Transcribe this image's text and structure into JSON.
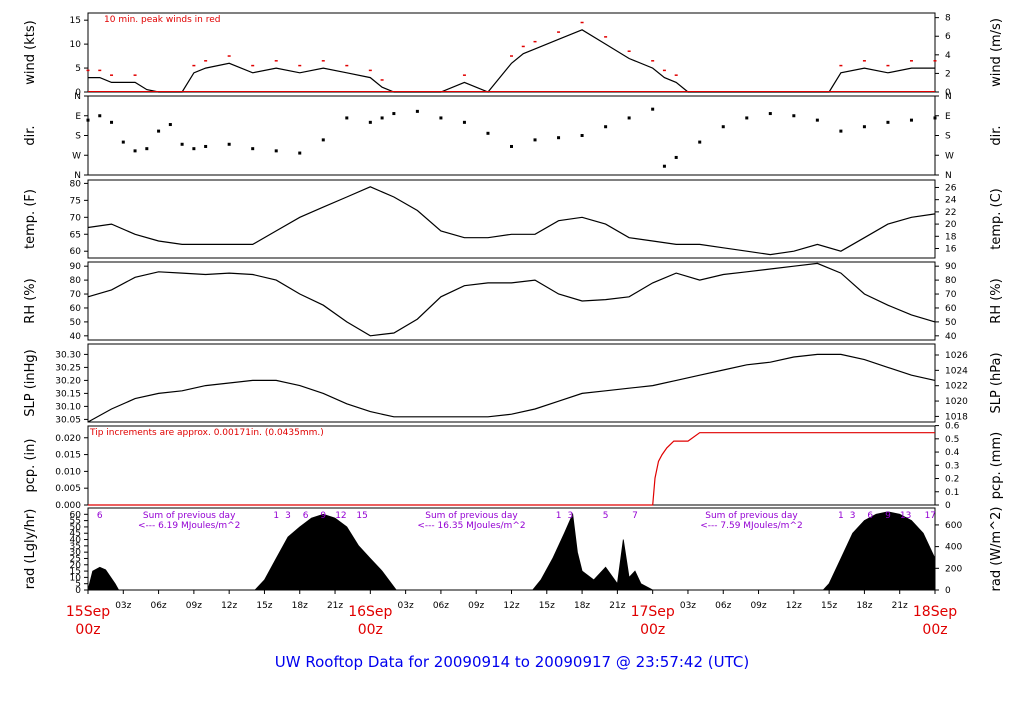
{
  "footer": {
    "title": "UW Rooftop Data for 20090914  to  20090917 @ 23:57:42  (UTC)"
  },
  "colors": {
    "trace": "#000000",
    "peak": "#e00000",
    "annotation": "#9400d3",
    "footer": "#0000ee",
    "date": "#e00000"
  },
  "time_axis": {
    "hour_ticks": [
      "03z",
      "06z",
      "09z",
      "12z",
      "15z",
      "18z",
      "21z"
    ],
    "date_labels": [
      {
        "date": "15Sep",
        "hour": "00z",
        "t": 0
      },
      {
        "date": "16Sep",
        "hour": "00z",
        "t": 24
      },
      {
        "date": "17Sep",
        "hour": "00z",
        "t": 48
      },
      {
        "date": "18Sep",
        "hour": "00z",
        "t": 72
      }
    ]
  },
  "chart_data": [
    {
      "type": "line",
      "id": "wind",
      "ylabel": "wind (kts)",
      "ylabel_right": "wind (m/s)",
      "ylim": [
        0,
        16.5
      ],
      "yticks": [
        0,
        5,
        10,
        15
      ],
      "right_ylim": [
        0,
        8.5
      ],
      "right_yticks": [
        0,
        2,
        4,
        6,
        8
      ],
      "annotation": "10 min. peak winds in red",
      "series": [
        {
          "x": [
            0,
            1,
            2,
            4,
            5,
            6,
            8,
            9,
            10,
            12,
            14,
            16,
            18,
            20,
            22,
            24,
            25,
            26,
            27,
            28,
            30,
            32,
            34,
            36,
            37,
            38,
            40,
            42,
            44,
            46,
            48,
            49,
            50,
            51,
            52,
            54,
            56,
            58,
            60,
            62,
            63,
            64,
            66,
            68,
            70,
            72
          ],
          "values": [
            3,
            3,
            2,
            2,
            0.5,
            0,
            0,
            4,
            5,
            6,
            4,
            5,
            4,
            5,
            4,
            3,
            1,
            0,
            0,
            0,
            0,
            2,
            0,
            6,
            8,
            9,
            11,
            13,
            10,
            7,
            5,
            3,
            2,
            0,
            0,
            0,
            0,
            0,
            0,
            0,
            0,
            4,
            5,
            4,
            5,
            5
          ]
        }
      ]
    },
    {
      "type": "scatter",
      "id": "dir",
      "ylabel": "dir.",
      "ylabel_right": "dir.",
      "yticks": [
        "N",
        "W",
        "S",
        "E",
        "N"
      ],
      "ylim": [
        0,
        360
      ],
      "series": [
        {
          "x": [
            0,
            1,
            2,
            3,
            4,
            5,
            6,
            7,
            8,
            9,
            10,
            12,
            14,
            16,
            18,
            20,
            22,
            24,
            25,
            26,
            28,
            30,
            32,
            34,
            36,
            38,
            40,
            42,
            44,
            46,
            48,
            49,
            50,
            52,
            54,
            56,
            58,
            60,
            62,
            64,
            66,
            68,
            70,
            72
          ],
          "values": [
            250,
            270,
            240,
            150,
            110,
            120,
            200,
            230,
            140,
            120,
            130,
            140,
            120,
            110,
            100,
            160,
            260,
            240,
            260,
            280,
            290,
            260,
            240,
            190,
            130,
            160,
            170,
            180,
            220,
            260,
            300,
            40,
            80,
            150,
            220,
            260,
            280,
            270,
            250,
            200,
            220,
            240,
            250,
            260
          ]
        }
      ]
    },
    {
      "type": "line",
      "id": "temp",
      "ylabel": "temp. (F)",
      "ylabel_right": "temp. (C)",
      "ylim": [
        58,
        81
      ],
      "yticks": [
        60,
        65,
        70,
        75,
        80
      ],
      "right_yticks": [
        16,
        18,
        20,
        22,
        24,
        26
      ],
      "series": [
        {
          "x": [
            0,
            2,
            4,
            6,
            8,
            10,
            12,
            14,
            16,
            18,
            20,
            22,
            24,
            26,
            28,
            30,
            32,
            34,
            36,
            38,
            40,
            42,
            44,
            46,
            48,
            50,
            52,
            54,
            56,
            58,
            60,
            62,
            64,
            66,
            68,
            70,
            72
          ],
          "values": [
            67,
            68,
            65,
            63,
            62,
            62,
            62,
            62,
            66,
            70,
            73,
            76,
            79,
            76,
            72,
            66,
            64,
            64,
            65,
            65,
            69,
            70,
            68,
            64,
            63,
            62,
            62,
            61,
            60,
            59,
            60,
            62,
            60,
            64,
            68,
            70,
            71
          ]
        }
      ]
    },
    {
      "type": "line",
      "id": "rh",
      "ylabel": "RH (%)",
      "ylabel_right": "RH (%)",
      "ylim": [
        37,
        93
      ],
      "yticks": [
        40,
        50,
        60,
        70,
        80,
        90
      ],
      "right_yticks": [
        40,
        50,
        60,
        70,
        80,
        90
      ],
      "series": [
        {
          "x": [
            0,
            2,
            4,
            6,
            8,
            10,
            12,
            14,
            16,
            18,
            20,
            22,
            24,
            26,
            28,
            30,
            32,
            34,
            36,
            38,
            40,
            42,
            44,
            46,
            48,
            50,
            52,
            54,
            56,
            58,
            60,
            62,
            64,
            66,
            68,
            70,
            72
          ],
          "values": [
            68,
            73,
            82,
            86,
            85,
            84,
            85,
            84,
            80,
            70,
            62,
            50,
            40,
            42,
            52,
            68,
            76,
            78,
            78,
            80,
            70,
            65,
            66,
            68,
            78,
            85,
            80,
            84,
            86,
            88,
            90,
            92,
            85,
            70,
            62,
            55,
            50
          ]
        }
      ]
    },
    {
      "type": "line",
      "id": "slp",
      "ylabel": "SLP (inHg)",
      "ylabel_right": "SLP (hPa)",
      "ylim": [
        30.04,
        30.34
      ],
      "yticks": [
        30.05,
        30.1,
        30.15,
        30.2,
        30.25,
        30.3
      ],
      "right_yticks": [
        1018,
        1020,
        1022,
        1024,
        1026
      ],
      "series": [
        {
          "x": [
            0,
            2,
            4,
            6,
            8,
            10,
            12,
            14,
            16,
            18,
            20,
            22,
            24,
            26,
            28,
            30,
            32,
            34,
            36,
            38,
            40,
            42,
            44,
            46,
            48,
            50,
            52,
            54,
            56,
            58,
            60,
            62,
            64,
            66,
            68,
            70,
            72
          ],
          "values": [
            30.04,
            30.09,
            30.13,
            30.15,
            30.16,
            30.18,
            30.19,
            30.2,
            30.2,
            30.18,
            30.15,
            30.11,
            30.08,
            30.06,
            30.06,
            30.06,
            30.06,
            30.06,
            30.07,
            30.09,
            30.12,
            30.15,
            30.16,
            30.17,
            30.18,
            30.2,
            30.22,
            30.24,
            30.26,
            30.27,
            30.29,
            30.3,
            30.3,
            30.28,
            30.25,
            30.22,
            30.2
          ]
        }
      ]
    },
    {
      "type": "line",
      "id": "pcp",
      "ylabel": "pcp. (in)",
      "ylabel_right": "pcp. (mm)",
      "ylim": [
        0,
        0.0235
      ],
      "yticks": [
        0.0,
        0.005,
        0.01,
        0.015,
        0.02
      ],
      "right_yticks": [
        0,
        0.1,
        0.2,
        0.3,
        0.4,
        0.5,
        0.6
      ],
      "annotation": "Tip increments are approx. 0.00171in. (0.0435mm.)",
      "series": [
        {
          "x": [
            0,
            48,
            48.2,
            48.5,
            48.8,
            49.2,
            49.8,
            50.5,
            51,
            52,
            54,
            60,
            72
          ],
          "values": [
            0,
            0,
            0.008,
            0.013,
            0.015,
            0.017,
            0.019,
            0.019,
            0.019,
            0.0215,
            0.0215,
            0.0215,
            0.0215
          ]
        }
      ]
    },
    {
      "type": "area",
      "id": "rad",
      "ylabel": "rad (Lgly/hr)",
      "ylabel_right": "rad (W/m^2)",
      "ylim": [
        0,
        65
      ],
      "yticks": [
        0,
        5,
        10,
        15,
        20,
        25,
        30,
        35,
        40,
        45,
        50,
        55,
        60
      ],
      "right_yticks": [
        0,
        200,
        400,
        600,
        800
      ],
      "hour_labels": [
        {
          "t": 1,
          "text": "6"
        },
        {
          "t": 16,
          "text": "1"
        },
        {
          "t": 17,
          "text": "3"
        },
        {
          "t": 18.5,
          "text": "6"
        },
        {
          "t": 20,
          "text": "9"
        },
        {
          "t": 21.5,
          "text": "12"
        },
        {
          "t": 23.3,
          "text": "15"
        },
        {
          "t": 40,
          "text": "1"
        },
        {
          "t": 41,
          "text": "3"
        },
        {
          "t": 44,
          "text": "5"
        },
        {
          "t": 46.5,
          "text": "7"
        },
        {
          "t": 64,
          "text": "1"
        },
        {
          "t": 65,
          "text": "3"
        },
        {
          "t": 66.5,
          "text": "6"
        },
        {
          "t": 68,
          "text": "9"
        },
        {
          "t": 69.5,
          "text": "13"
        },
        {
          "t": 71.6,
          "text": "17"
        }
      ],
      "day_sums": [
        {
          "t": 5.2,
          "line1": "Sum of previous day",
          "line2": "<--- 6.19 MJoules/m^2"
        },
        {
          "t": 29.2,
          "line1": "Sum of previous day",
          "line2": "<--- 16.35 MJoules/m^2"
        },
        {
          "t": 53,
          "line1": "Sum of previous day",
          "line2": "<--- 7.59 MJoules/m^2"
        }
      ],
      "series": [
        {
          "x": [
            0,
            0.4,
            1,
            1.5,
            2.3,
            2.6,
            14.2,
            15,
            16,
            17,
            18,
            19,
            20,
            21,
            22,
            23,
            24,
            25,
            26.2,
            37.8,
            38.5,
            39.5,
            40.5,
            41.2,
            41.6,
            42,
            43,
            44,
            45,
            45.5,
            46,
            46.5,
            47,
            47.6,
            48,
            62.5,
            63,
            64,
            65,
            66,
            67,
            68,
            69,
            70,
            71,
            72
          ],
          "values": [
            0,
            15,
            18,
            16,
            5,
            0,
            0,
            8,
            25,
            42,
            50,
            57,
            60,
            57,
            50,
            35,
            25,
            15,
            0,
            0,
            8,
            25,
            45,
            60,
            30,
            15,
            8,
            18,
            5,
            40,
            10,
            15,
            5,
            2,
            0,
            0,
            5,
            25,
            45,
            55,
            60,
            62,
            60,
            55,
            45,
            25
          ]
        }
      ]
    }
  ]
}
